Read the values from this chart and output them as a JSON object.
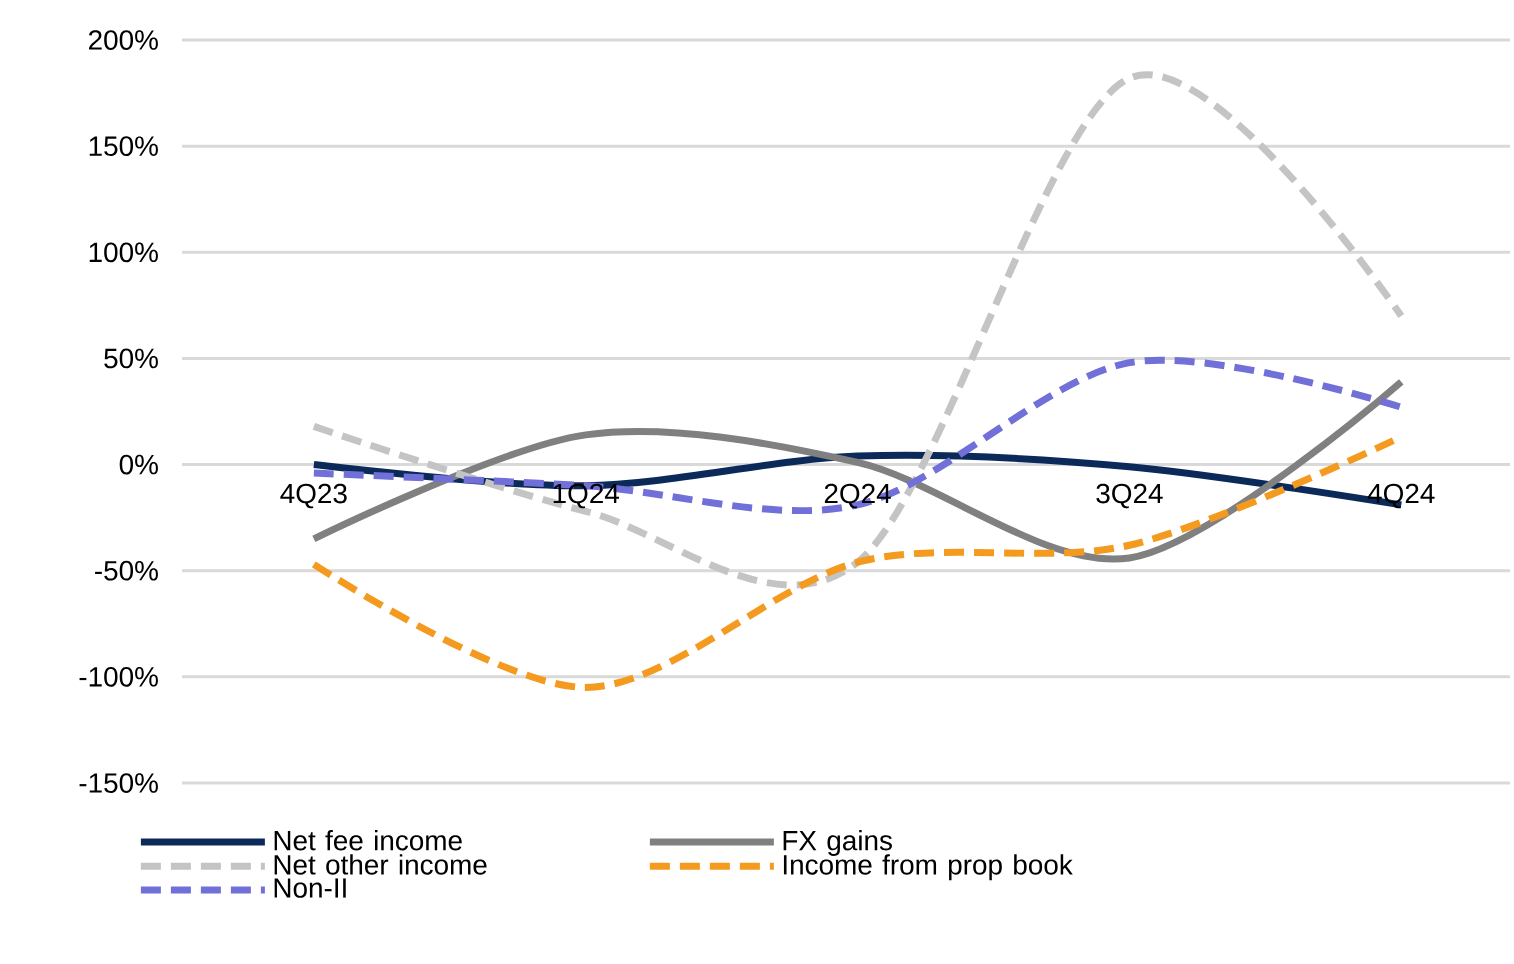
{
  "chart_data": {
    "type": "line",
    "categories": [
      "4Q23",
      "1Q24",
      "2Q24",
      "3Q24",
      "4Q24"
    ],
    "series": [
      {
        "name": "Net fee income",
        "color": "#0b2a5a",
        "line_style": "solid",
        "values": [
          0,
          -10,
          4,
          -1,
          -19
        ]
      },
      {
        "name": "FX gains",
        "color": "#808080",
        "line_style": "solid",
        "values": [
          -35,
          14,
          1,
          -44,
          39
        ]
      },
      {
        "name": "Net other income",
        "color": "#c4c4c4",
        "line_style": "dashed",
        "values": [
          18,
          -22,
          -46,
          182,
          70
        ]
      },
      {
        "name": "Income from prop book",
        "color": "#f39a1f",
        "line_style": "dashed",
        "values": [
          -47,
          -105,
          -46,
          -38,
          13
        ]
      },
      {
        "name": "Non-II",
        "color": "#7070d8",
        "line_style": "dashed",
        "values": [
          -4,
          -10,
          -19,
          48,
          27
        ]
      }
    ],
    "ylim": [
      -150,
      200
    ],
    "yticks": [
      {
        "value": -150,
        "label": "-150%"
      },
      {
        "value": -100,
        "label": "-100%"
      },
      {
        "value": -50,
        "label": "-50%"
      },
      {
        "value": 0,
        "label": "0%"
      },
      {
        "value": 50,
        "label": "50%"
      },
      {
        "value": 100,
        "label": "100%"
      },
      {
        "value": 150,
        "label": "150%"
      },
      {
        "value": 200,
        "label": "200%"
      }
    ],
    "grid": "y",
    "legend": "bottom",
    "marker": "none"
  }
}
